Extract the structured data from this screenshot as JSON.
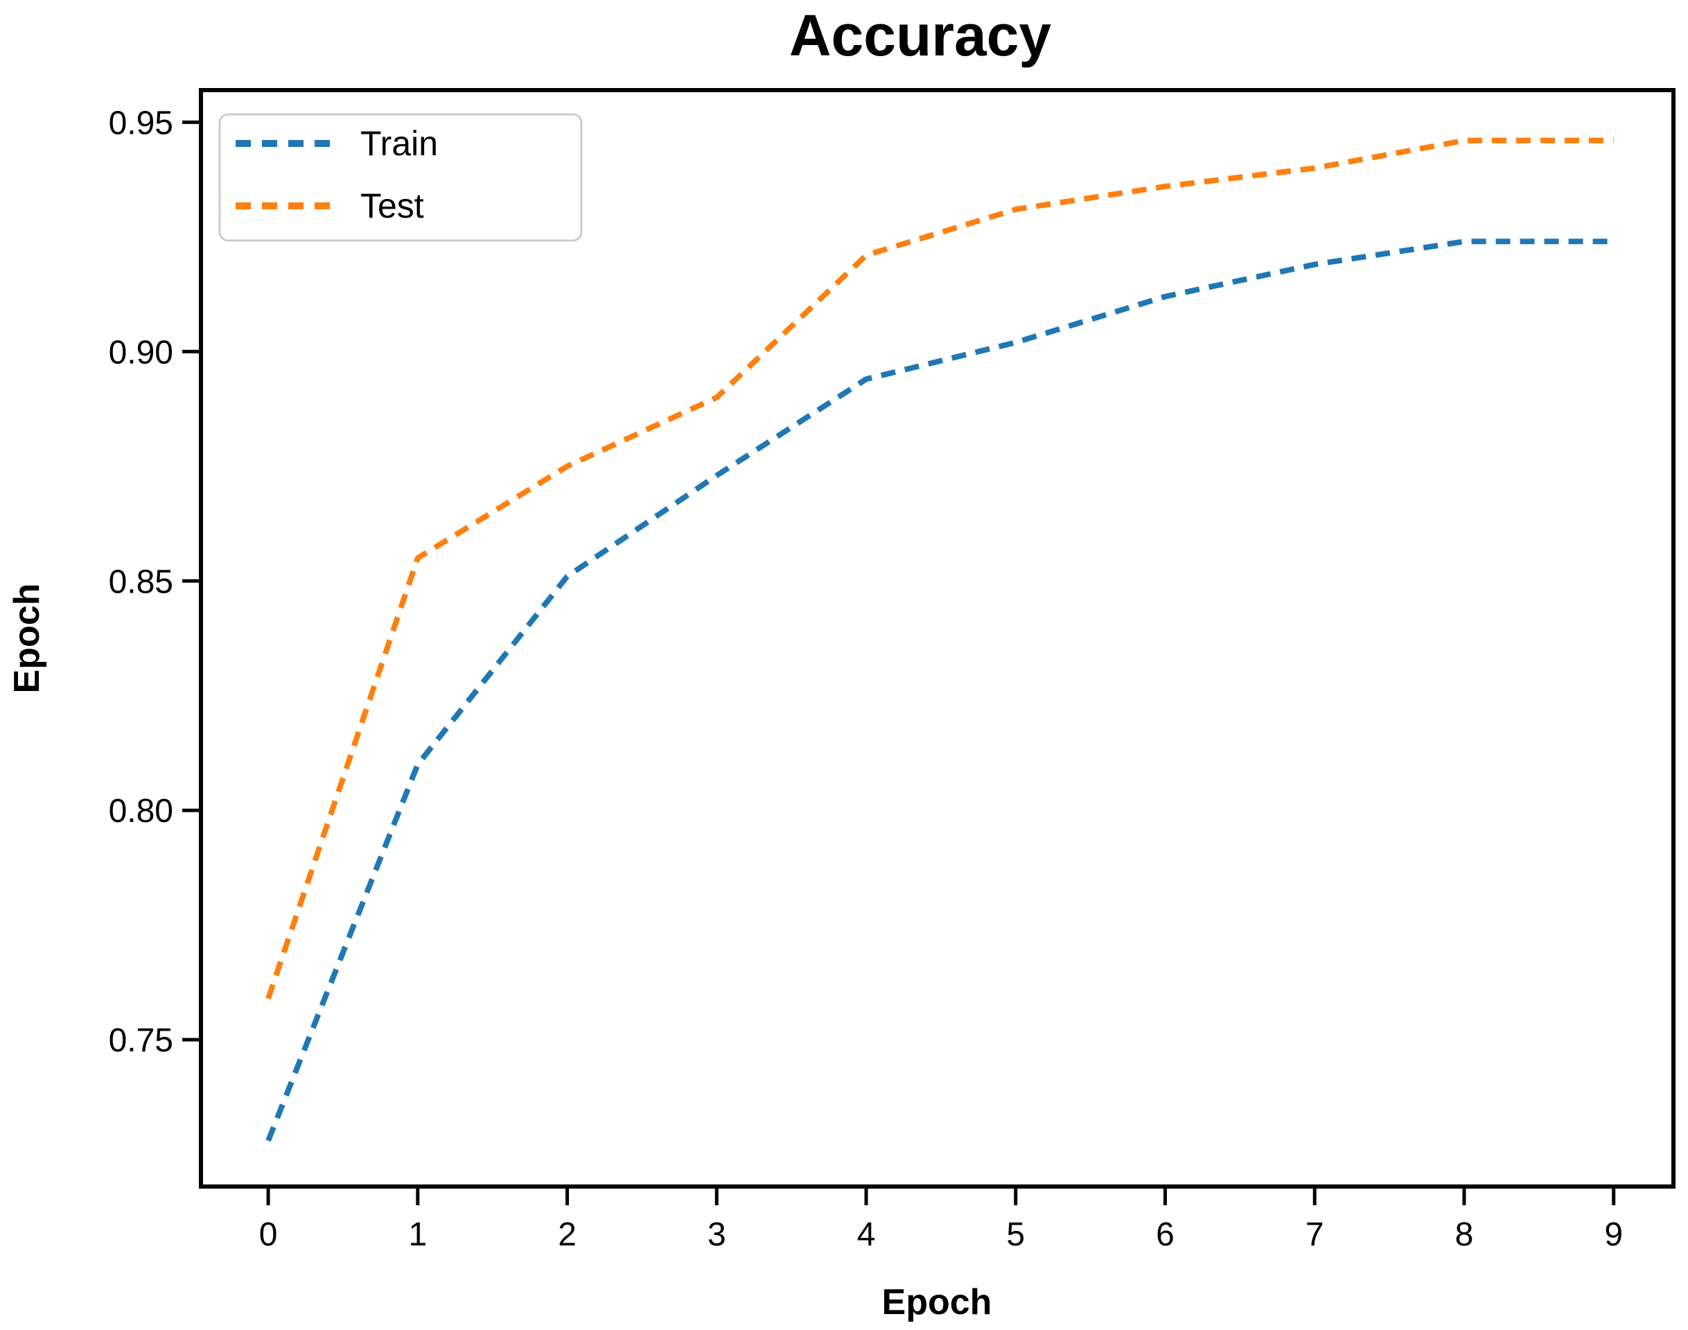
{
  "figure": {
    "background": "#ffffff",
    "axis_color": "#000000"
  },
  "chart_data": {
    "type": "line",
    "title": "Accuracy",
    "xlabel": "Epoch",
    "ylabel": "Epoch",
    "x": [
      0,
      1,
      2,
      3,
      4,
      5,
      6,
      7,
      8,
      9
    ],
    "xtick_labels": [
      "0",
      "1",
      "2",
      "3",
      "4",
      "5",
      "6",
      "7",
      "8",
      "9"
    ],
    "yticks": [
      0.75,
      0.8,
      0.85,
      0.9,
      0.95
    ],
    "ytick_labels": [
      "0.75",
      "0.80",
      "0.85",
      "0.90",
      "0.95"
    ],
    "xlim": [
      -0.45,
      9.4
    ],
    "ylim": [
      0.718,
      0.957
    ],
    "grid": false,
    "line_style": "dashed",
    "legend_position": "upper-left",
    "series": [
      {
        "name": "Train",
        "color": "#1f77b4",
        "values": [
          0.728,
          0.81,
          0.851,
          0.873,
          0.894,
          0.902,
          0.912,
          0.919,
          0.924,
          0.924
        ]
      },
      {
        "name": "Test",
        "color": "#ff7f0e",
        "values": [
          0.759,
          0.855,
          0.875,
          0.89,
          0.921,
          0.931,
          0.936,
          0.94,
          0.946,
          0.946
        ]
      }
    ]
  }
}
